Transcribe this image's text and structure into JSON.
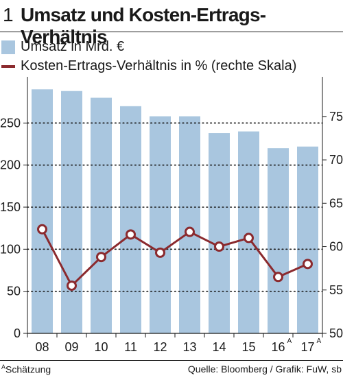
{
  "header": {
    "number": "1",
    "title": "Umsatz und Kosten-Ertrags-Verhältnis"
  },
  "legend": {
    "bars_label": "Umsatz in Mrd. €",
    "line_label": "Kosten-Ertrags-Verhältnis in % (rechte Skala)"
  },
  "colors": {
    "bar": "#a9c6df",
    "line": "#8b2a2e",
    "marker_fill": "#ffffff",
    "text": "#1a1a1a"
  },
  "chart_data": {
    "type": "bar+line",
    "categories": [
      "08",
      "09",
      "10",
      "11",
      "12",
      "13",
      "14",
      "15",
      "16",
      "17"
    ],
    "category_superscripts": [
      "",
      "",
      "",
      "",
      "",
      "",
      "",
      "",
      "A",
      "A"
    ],
    "series": [
      {
        "name": "Umsatz in Mrd. €",
        "type": "bar",
        "axis": "left",
        "values": [
          290,
          288,
          280,
          270,
          258,
          258,
          238,
          240,
          220,
          222
        ]
      },
      {
        "name": "Kosten-Ertrags-Verhältnis in % (rechte Skala)",
        "type": "line",
        "axis": "right",
        "values": [
          62,
          55.5,
          58.8,
          61.4,
          59.3,
          61.7,
          60,
          61,
          56.5,
          58
        ]
      }
    ],
    "left_axis": {
      "ylim": [
        0,
        300
      ],
      "ticks": [
        0,
        50,
        100,
        150,
        200,
        250
      ]
    },
    "right_axis": {
      "ylim": [
        50,
        79.1
      ],
      "ticks": [
        50,
        55,
        60,
        65,
        70,
        75
      ]
    },
    "grid": "dotted horizontal at left ticks"
  },
  "footer": {
    "note_marker": "A",
    "note_text": "Schätzung",
    "source": "Quelle: Bloomberg / Grafik: FuW, sb"
  }
}
